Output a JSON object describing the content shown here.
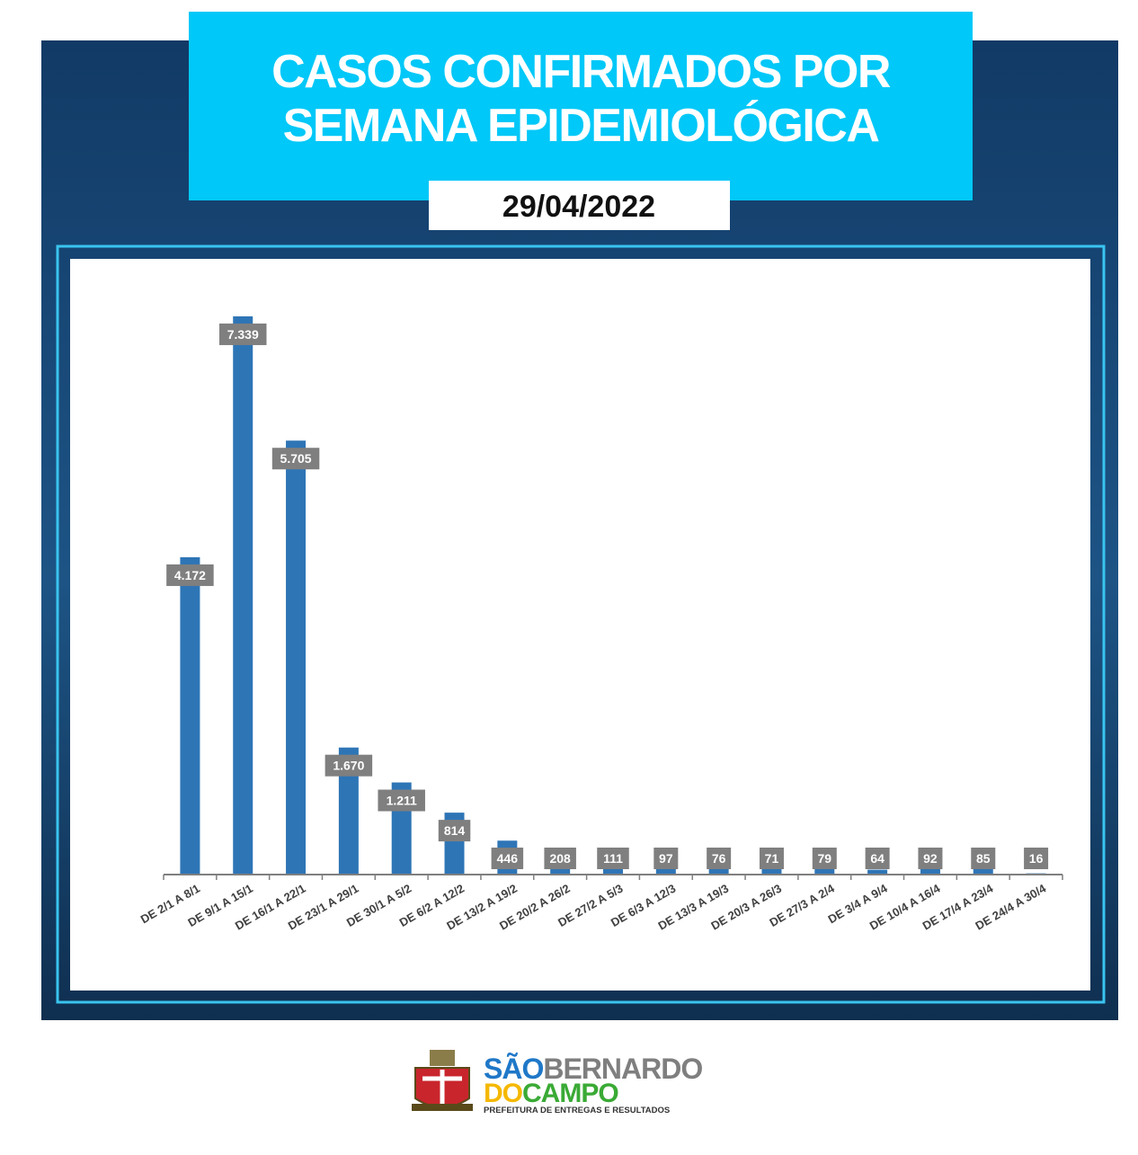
{
  "chart_data": {
    "type": "bar",
    "title": [
      "CASOS CONFIRMADOS POR",
      "SEMANA EPIDEMIOLÓGICA"
    ],
    "subtitle": "29/04/2022",
    "categories": [
      "DE 2/1 A 8/1",
      "DE 9/1 A 15/1",
      "DE 16/1 A 22/1",
      "DE 23/1 A 29/1",
      "DE 30/1 A 5/2",
      "DE 6/2 A 12/2",
      "DE 13/2 A 19/2",
      "DE 20/2 A 26/2",
      "DE 27/2 A 5/3",
      "DE 6/3 A 12/3",
      "DE 13/3 A 19/3",
      "DE 20/3 A 26/3",
      "DE 27/3 A 2/4",
      "DE 3/4 A 9/4",
      "DE 10/4 A 16/4",
      "DE 17/4 A 23/4",
      "DE 24/4 A 30/4"
    ],
    "values": [
      4172,
      7339,
      5705,
      1670,
      1211,
      814,
      446,
      208,
      111,
      97,
      76,
      71,
      79,
      64,
      92,
      85,
      16
    ],
    "value_labels": [
      "4.172",
      "7.339",
      "5.705",
      "1.670",
      "1.211",
      "814",
      "446",
      "208",
      "111",
      "97",
      "76",
      "71",
      "79",
      "64",
      "92",
      "85",
      "16"
    ],
    "color": "#2e75b6",
    "ylim": [
      0,
      8000
    ]
  },
  "footer": {
    "logo_parts": [
      "SÃO",
      "BERNARDO",
      "DO",
      "CAMPO"
    ],
    "tagline": "PREFEITURA DE ENTREGAS E RESULTADOS"
  }
}
